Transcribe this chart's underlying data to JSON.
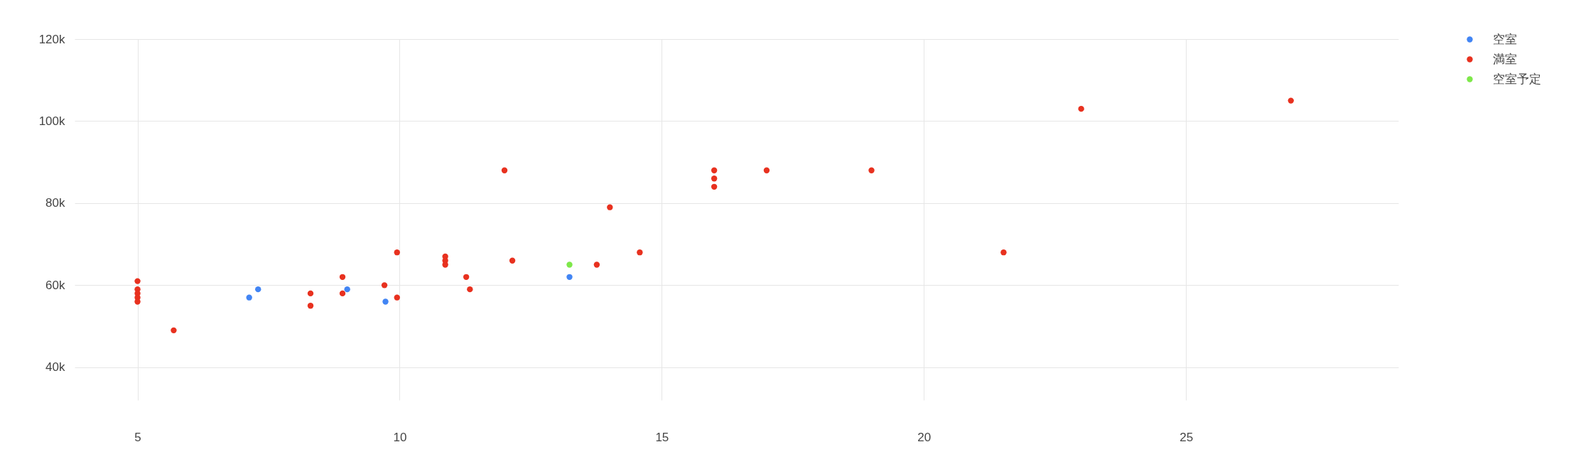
{
  "chart_data": {
    "type": "scatter",
    "xlim": [
      3.8,
      29.05
    ],
    "ylim": [
      32000,
      120000
    ],
    "xticks": [
      5,
      10,
      15,
      20,
      25
    ],
    "yticks": [
      {
        "value": 40000,
        "label": "40k"
      },
      {
        "value": 60000,
        "label": "60k"
      },
      {
        "value": 80000,
        "label": "80k"
      },
      {
        "value": 100000,
        "label": "100k"
      },
      {
        "value": 120000,
        "label": "120k"
      }
    ],
    "grid": true,
    "legend": "top right",
    "marker": "circle",
    "series": [
      {
        "name": "空室",
        "color": "#4285f4",
        "x": [
          7.13,
          7.3,
          9.0,
          9.73,
          13.24
        ],
        "values": [
          57000,
          59000,
          59000,
          56000,
          62000
        ]
      },
      {
        "name": "満室",
        "color": "#e8311f",
        "x": [
          5,
          5,
          5,
          5,
          5,
          5.69,
          8.3,
          8.3,
          8.91,
          8.91,
          9.71,
          9.95,
          9.95,
          10.87,
          10.87,
          10.87,
          11.27,
          11.34,
          12.0,
          12.15,
          13.76,
          14.01,
          14.58,
          16,
          16,
          16,
          17,
          19,
          21.52,
          23,
          27
        ],
        "values": [
          61000,
          59000,
          58000,
          57000,
          56000,
          49000,
          58000,
          55000,
          62000,
          58000,
          60000,
          57000,
          68000,
          67000,
          66000,
          65000,
          62000,
          59000,
          88000,
          66000,
          65000,
          79000,
          68000,
          88000,
          86000,
          84000,
          88000,
          88000,
          68000,
          103000,
          105000
        ]
      },
      {
        "name": "空室予定",
        "color": "#7ee84a",
        "x": [
          13.24
        ],
        "values": [
          65000
        ]
      }
    ]
  }
}
